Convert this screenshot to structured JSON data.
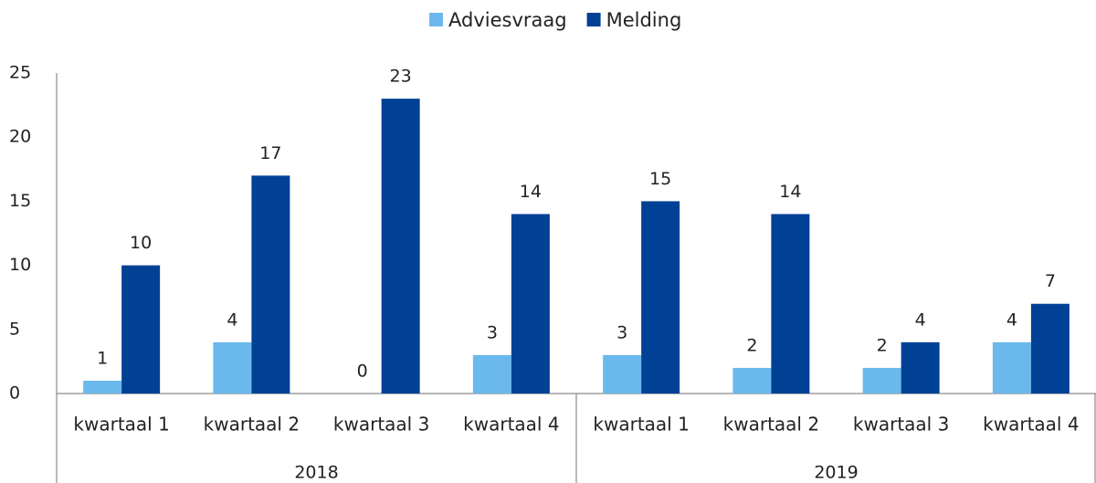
{
  "chart_data": {
    "type": "bar",
    "groups": [
      {
        "name": "2018",
        "categories": [
          "kwartaal 1",
          "kwartaal 2",
          "kwartaal 3",
          "kwartaal 4"
        ]
      },
      {
        "name": "2019",
        "categories": [
          "kwartaal 1",
          "kwartaal 2",
          "kwartaal 3",
          "kwartaal 4"
        ]
      }
    ],
    "series": [
      {
        "name": "Adviesvraag",
        "color": "#6bb9ec",
        "values": [
          1,
          4,
          0,
          3,
          3,
          2,
          2,
          4
        ]
      },
      {
        "name": "Melding",
        "color": "#004196",
        "values": [
          10,
          17,
          23,
          14,
          15,
          14,
          4,
          7
        ]
      }
    ],
    "ylim": [
      0,
      25
    ],
    "yticks": [
      0,
      5,
      10,
      15,
      20,
      25
    ],
    "legend": "top",
    "grid": false
  }
}
